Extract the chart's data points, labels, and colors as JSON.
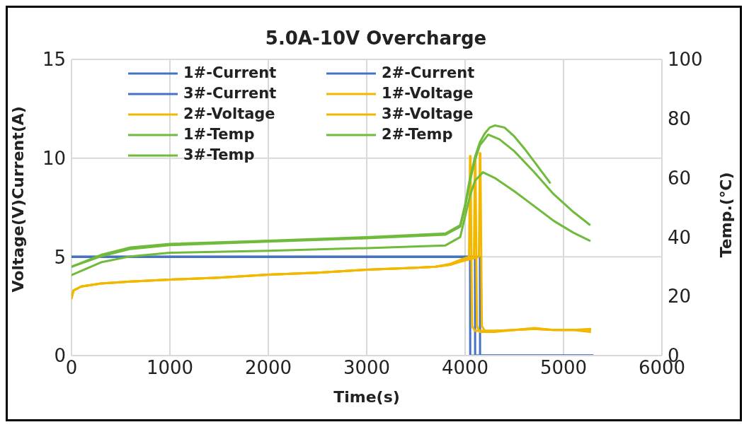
{
  "chart_data": {
    "type": "line",
    "title": "5.0A-10V Overcharge",
    "xlabel": "Time(s)",
    "ylabel": "Voltage(V)Current(A)",
    "y2label": "Temp.(℃)",
    "xlim": [
      0,
      6000
    ],
    "xticks": [
      0,
      1000,
      2000,
      3000,
      4000,
      5000,
      6000
    ],
    "ylim": [
      0,
      15
    ],
    "yticks": [
      0,
      5,
      10,
      15
    ],
    "y2lim": [
      0,
      100
    ],
    "y2ticks": [
      0,
      20,
      40,
      60,
      80,
      100
    ],
    "grid": true,
    "legend": "top left",
    "marker": "none",
    "line_style": "solid",
    "series": [
      {
        "name": "1#-Current",
        "color": "#4472c4",
        "x": [
          0,
          1000,
          2000,
          3000,
          4050,
          4052,
          4500,
          5000,
          5300
        ],
        "values": [
          5,
          5,
          5,
          5,
          5,
          0,
          0,
          0,
          0
        ]
      },
      {
        "name": "2#-Current",
        "color": "#4472c4",
        "x": [
          0,
          1000,
          2000,
          3000,
          4100,
          4102,
          4500,
          5000,
          5300
        ],
        "values": [
          5,
          5,
          5,
          5,
          5,
          0,
          0,
          0,
          0
        ]
      },
      {
        "name": "3#-Current",
        "color": "#4472c4",
        "x": [
          0,
          1000,
          2000,
          3000,
          4150,
          4152,
          4500,
          5000,
          5300
        ],
        "values": [
          5,
          5,
          5,
          5,
          5,
          0,
          0,
          0,
          0
        ]
      },
      {
        "name": "1#-Voltage",
        "color": "#f2b800",
        "x": [
          0,
          20,
          100,
          300,
          600,
          1000,
          1500,
          2000,
          2500,
          3000,
          3500,
          3700,
          3850,
          3950,
          4040,
          4050,
          4055,
          4070,
          4100,
          4300,
          4500,
          4700,
          4900,
          5100,
          5270
        ],
        "values": [
          2.9,
          3.3,
          3.5,
          3.65,
          3.75,
          3.85,
          3.95,
          4.1,
          4.2,
          4.35,
          4.45,
          4.5,
          4.65,
          4.85,
          5.0,
          10.1,
          10.1,
          1.5,
          1.25,
          1.25,
          1.3,
          1.35,
          1.3,
          1.3,
          1.35
        ]
      },
      {
        "name": "2#-Voltage",
        "color": "#f2b800",
        "x": [
          0,
          20,
          100,
          300,
          600,
          1000,
          1500,
          2000,
          2500,
          3000,
          3500,
          3700,
          3850,
          3950,
          4090,
          4100,
          4105,
          4120,
          4150,
          4300,
          4500,
          4700,
          4900,
          5100,
          5270
        ],
        "values": [
          2.9,
          3.3,
          3.5,
          3.65,
          3.75,
          3.85,
          3.95,
          4.1,
          4.2,
          4.35,
          4.45,
          4.5,
          4.6,
          4.8,
          5.0,
          10.0,
          10.0,
          1.5,
          1.2,
          1.2,
          1.3,
          1.4,
          1.3,
          1.3,
          1.2
        ]
      },
      {
        "name": "3#-Voltage",
        "color": "#f2b800",
        "x": [
          0,
          20,
          100,
          300,
          600,
          1000,
          1500,
          2000,
          2500,
          3000,
          3500,
          3700,
          3850,
          3950,
          4140,
          4150,
          4155,
          4170,
          4200,
          4300,
          4500,
          4700,
          4900,
          5100,
          5270
        ],
        "values": [
          2.9,
          3.3,
          3.5,
          3.65,
          3.75,
          3.85,
          3.95,
          4.1,
          4.2,
          4.35,
          4.45,
          4.5,
          4.6,
          4.75,
          5.0,
          10.25,
          10.25,
          1.5,
          1.25,
          1.25,
          1.3,
          1.35,
          1.3,
          1.3,
          1.3
        ]
      },
      {
        "name": "1#-Temp",
        "color": "#70ba3c",
        "axis": "y2",
        "x": [
          0,
          300,
          600,
          1000,
          2000,
          3000,
          3800,
          3950,
          4000,
          4050,
          4100,
          4150,
          4200,
          4250,
          4305,
          4400,
          4500,
          4600,
          4700,
          4862
        ],
        "values": [
          30,
          34,
          36.5,
          37.7,
          38.8,
          40,
          41.2,
          44,
          51,
          60,
          67,
          72,
          75,
          77,
          77.7,
          77,
          74,
          70,
          65.6,
          58.4
        ]
      },
      {
        "name": "2#-Temp",
        "color": "#70ba3c",
        "axis": "y2",
        "x": [
          0,
          300,
          600,
          1000,
          2000,
          3000,
          3800,
          3950,
          4000,
          4050,
          4100,
          4150,
          4235,
          4350,
          4500,
          4700,
          4900,
          5100,
          5265
        ],
        "values": [
          30,
          33.5,
          36,
          37.3,
          38.5,
          39.6,
          40.8,
          43.5,
          50,
          59,
          66,
          71,
          74.6,
          73,
          69,
          62,
          54.5,
          48.5,
          44.2
        ]
      },
      {
        "name": "3#-Temp",
        "color": "#70ba3c",
        "axis": "y2",
        "x": [
          0,
          300,
          600,
          1000,
          2000,
          3000,
          3800,
          3950,
          4000,
          4050,
          4100,
          4180,
          4300,
          4500,
          4700,
          4900,
          5100,
          5265
        ],
        "values": [
          27.2,
          31.5,
          33.5,
          34.7,
          35.4,
          36.3,
          37.2,
          40,
          47,
          54,
          59,
          61.9,
          60,
          55.5,
          50.5,
          45.5,
          41.5,
          38.8
        ]
      }
    ]
  }
}
